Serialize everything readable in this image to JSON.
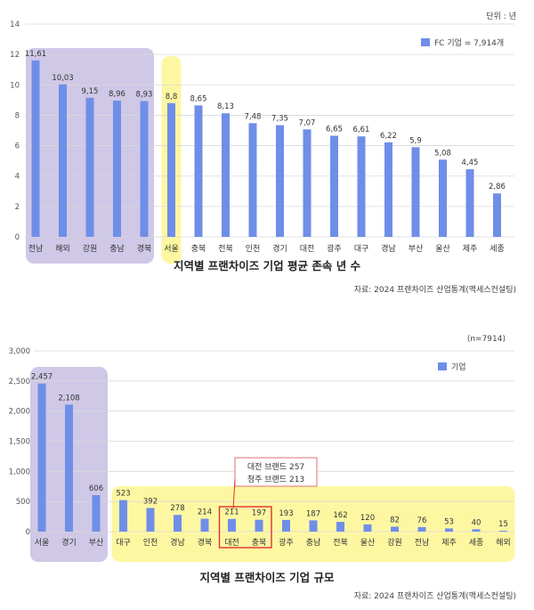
{
  "chart_data": [
    {
      "type": "bar",
      "title": "지역별 프랜차이즈 기업 평균 존속 년 수",
      "unit_note": "단위 : 년",
      "source": "자료: 2024 프랜차이즈 산업통계(맥세스컨설팅)",
      "legend": "FC 기업 = 7,914개",
      "categories": [
        "전남",
        "해외",
        "강원",
        "충남",
        "경북",
        "서울",
        "충북",
        "전북",
        "인천",
        "경기",
        "대전",
        "광주",
        "대구",
        "경남",
        "부산",
        "울산",
        "제주",
        "세종"
      ],
      "values": [
        11.61,
        10.03,
        9.15,
        8.96,
        8.93,
        8.8,
        8.65,
        8.13,
        7.48,
        7.35,
        7.07,
        6.65,
        6.61,
        6.22,
        5.9,
        5.08,
        4.45,
        2.86
      ],
      "value_labels": [
        "11,61",
        "10,03",
        "9,15",
        "8,96",
        "8,93",
        "8,8",
        "8,65",
        "8,13",
        "7,48",
        "7,35",
        "7,07",
        "6,65",
        "6,61",
        "6,22",
        "5,9",
        "5,08",
        "4,45",
        "2,86"
      ],
      "ylim": [
        0,
        14
      ],
      "yticks": [
        0,
        2,
        4,
        6,
        8,
        10,
        12,
        14
      ],
      "ytick_labels": [
        "0",
        "2",
        "4",
        "6",
        "8",
        "10",
        "12",
        "14"
      ],
      "grid": true,
      "legend_position": "top-right",
      "highlight_purple": [
        "전남",
        "해외",
        "강원",
        "충남",
        "경북"
      ],
      "highlight_yellow": [
        "서울"
      ],
      "colors": {
        "bar": "#6f8ee8",
        "purple": "#cfc8e6",
        "yellow": "#fdf7a2",
        "grid": "#d9d9d9"
      }
    },
    {
      "type": "bar",
      "title": "지역별 프랜차이즈 기업 규모",
      "unit_note": "(n=7914)",
      "source": "자료: 2024 프랜차이즈 산업통계(맥세스컨설팅)",
      "legend": "기업",
      "categories": [
        "서울",
        "경기",
        "부산",
        "대구",
        "인천",
        "경남",
        "경북",
        "대전",
        "충북",
        "광주",
        "충남",
        "전북",
        "울산",
        "강원",
        "전남",
        "제주",
        "세종",
        "해외"
      ],
      "values": [
        2457,
        2108,
        606,
        523,
        392,
        278,
        214,
        211,
        197,
        193,
        187,
        162,
        120,
        82,
        76,
        53,
        40,
        15
      ],
      "value_labels": [
        "2,457",
        "2,108",
        "606",
        "523",
        "392",
        "278",
        "214",
        "211",
        "197",
        "193",
        "187",
        "162",
        "120",
        "82",
        "76",
        "53",
        "40",
        "15"
      ],
      "ylim": [
        0,
        3000
      ],
      "yticks": [
        0,
        500,
        1000,
        1500,
        2000,
        2500,
        3000
      ],
      "ytick_labels": [
        "0",
        "500",
        "1,000",
        "1,500",
        "2,000",
        "2,500",
        "3,000"
      ],
      "grid": true,
      "legend_position": "top-right",
      "highlight_purple": [
        "서울",
        "경기",
        "부산"
      ],
      "highlight_yellow": [
        "대구",
        "인천",
        "경남",
        "경북",
        "대전",
        "충북",
        "광주",
        "충남",
        "전북",
        "울산",
        "강원",
        "전남",
        "제주",
        "세종",
        "해외"
      ],
      "highlight_box": [
        "대전",
        "충북"
      ],
      "annotation": {
        "line1": "대전 브랜드 257",
        "line2": "청주 브랜드 213"
      },
      "colors": {
        "bar": "#6f8ee8",
        "purple": "#cfc8e6",
        "yellow": "#fdf7a2",
        "grid": "#d9d9d9",
        "box": "#e03030"
      }
    }
  ]
}
